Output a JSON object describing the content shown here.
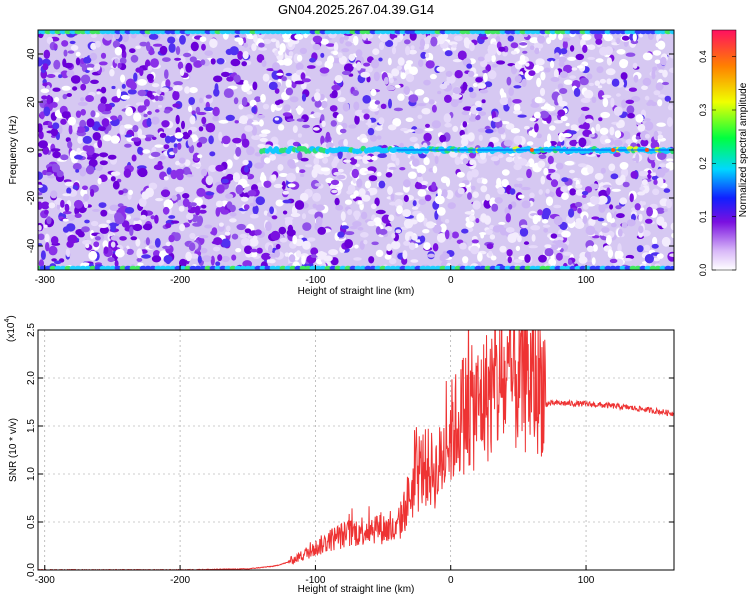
{
  "title": "GN04.2025.267.04.39.G14",
  "chart_data": [
    {
      "type": "heatmap",
      "title": "GN04.2025.267.04.39.G14",
      "xlabel": "Height of straight line (km)",
      "ylabel": "Frequency (Hz)",
      "xlim": [
        -305,
        165
      ],
      "ylim": [
        -50,
        50
      ],
      "x_ticks": [
        -300,
        -200,
        -100,
        0,
        100
      ],
      "y_ticks": [
        -40,
        -20,
        0,
        20,
        40
      ],
      "colorbar": {
        "label": "Normalized spectral amplitude",
        "range": [
          0.0,
          0.45
        ],
        "ticks": [
          0.0,
          0.1,
          0.2,
          0.3,
          0.4
        ]
      },
      "features": [
        {
          "name": "",
          "description": "carrier line near 0 Hz",
          "x_start": -140,
          "x_end": 165,
          "frequency": 0
        }
      ]
    },
    {
      "type": "line",
      "xlabel": "Height of straight line (km)",
      "ylabel": "SNR (10 * v/v)",
      "y_multiplier": "(x10",
      "y_multiplier_exp": "4",
      "y_multiplier_close": ")",
      "xlim": [
        -305,
        165
      ],
      "ylim": [
        0,
        2.5
      ],
      "x_ticks": [
        -300,
        -200,
        -100,
        0,
        100
      ],
      "y_ticks": [
        0.0,
        0.5,
        1.0,
        1.5,
        2.0,
        2.5
      ],
      "series": [
        {
          "name": "",
          "color": "#ee3333",
          "x": [
            -305,
            -250,
            -200,
            -150,
            -130,
            -115,
            -100,
            -85,
            -70,
            -55,
            -40,
            -30,
            -20,
            -10,
            0,
            10,
            20,
            30,
            40,
            50,
            60,
            70,
            80,
            100,
            120,
            140,
            165
          ],
          "y": [
            0.0,
            0.0,
            0.0,
            0.01,
            0.04,
            0.1,
            0.2,
            0.3,
            0.35,
            0.4,
            0.35,
            0.7,
            0.95,
            0.9,
            1.25,
            1.45,
            1.5,
            1.65,
            1.7,
            1.75,
            1.72,
            1.72,
            1.73,
            1.72,
            1.7,
            1.67,
            1.62
          ]
        }
      ]
    }
  ]
}
